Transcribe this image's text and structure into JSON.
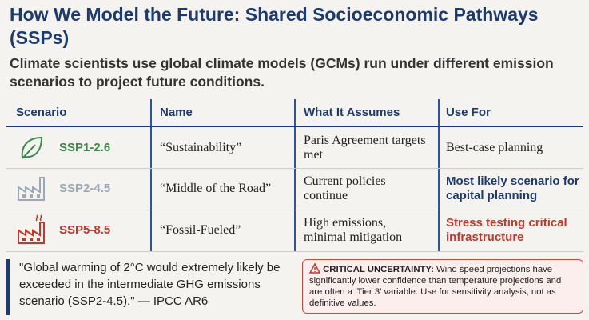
{
  "header": {
    "title": "How We Model the Future: Shared Socioeconomic Pathways (SSPs)",
    "subtitle": "Climate scientists use global climate models (GCMs) run under different emission scenarios to project future conditions."
  },
  "table": {
    "columns": [
      "Scenario",
      "Name",
      "What It Assumes",
      "Use For"
    ],
    "rows": [
      [
        "SSP1-2.6",
        "“Sustainability”",
        "Paris Agreement targets met",
        "Best-case planning"
      ],
      [
        "SSP2-4.5",
        "“Middle of the Road”",
        "Current policies continue",
        "Most likely scenario for capital planning"
      ],
      [
        "SSP5-8.5",
        "“Fossil-Fueled”",
        "High emissions, minimal mitigation",
        "Stress testing critical infrastructure"
      ]
    ]
  },
  "quote": "\"Global warming of 2°C would extremely likely be exceeded in the intermediate GHG emissions scenario (SSP2-4.5).\" — IPCC AR6",
  "warning": {
    "label": "CRITICAL UNCERTAINTY:",
    "text": "Wind speed projections have significantly lower confidence than temperature projections and are often a ‘Tier 3’ variable. Use for sensitivity analysis, not as definitive values."
  }
}
